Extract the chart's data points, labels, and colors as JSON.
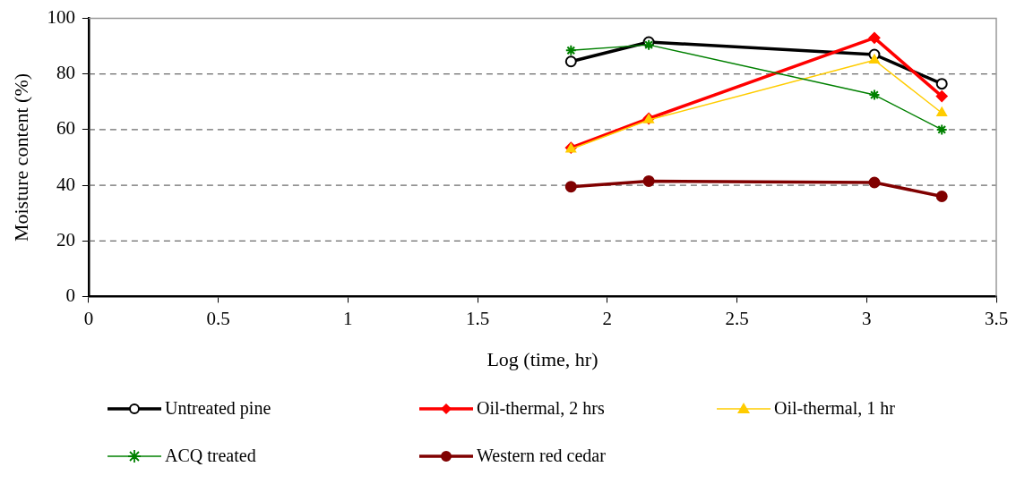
{
  "chart_data": {
    "type": "line",
    "xlabel": "Log (time, hr)",
    "ylabel": "Moisture content (%)",
    "x": [
      1.86,
      2.16,
      3.03,
      3.29
    ],
    "series": [
      {
        "name": "Untreated pine",
        "color": "#000000",
        "marker": "circle",
        "values": [
          84.5,
          91.5,
          87,
          76.5
        ]
      },
      {
        "name": "Oil-thermal, 2 hrs",
        "color": "#ff0000",
        "marker": "diamond",
        "values": [
          53.5,
          64,
          93,
          72
        ]
      },
      {
        "name": "Oil-thermal, 1 hr",
        "color": "#ffcc00",
        "marker": "triangle",
        "values": [
          53,
          63.5,
          85,
          66
        ]
      },
      {
        "name": "ACQ treated",
        "color": "#008000",
        "marker": "cross",
        "values": [
          88.5,
          90.5,
          72.5,
          60
        ]
      },
      {
        "name": "Western red cedar",
        "color": "#800000",
        "marker": "circle",
        "values": [
          39.5,
          41.5,
          41,
          36
        ]
      }
    ],
    "xlim": [
      0,
      3.5
    ],
    "xticks": [
      0,
      0.5,
      1,
      1.5,
      2,
      2.5,
      3,
      3.5
    ],
    "ylim": [
      0,
      100
    ],
    "yticks": [
      0,
      20,
      40,
      60,
      80,
      100
    ],
    "grid": "y",
    "legend": "bottom",
    "line_style": "solid"
  }
}
